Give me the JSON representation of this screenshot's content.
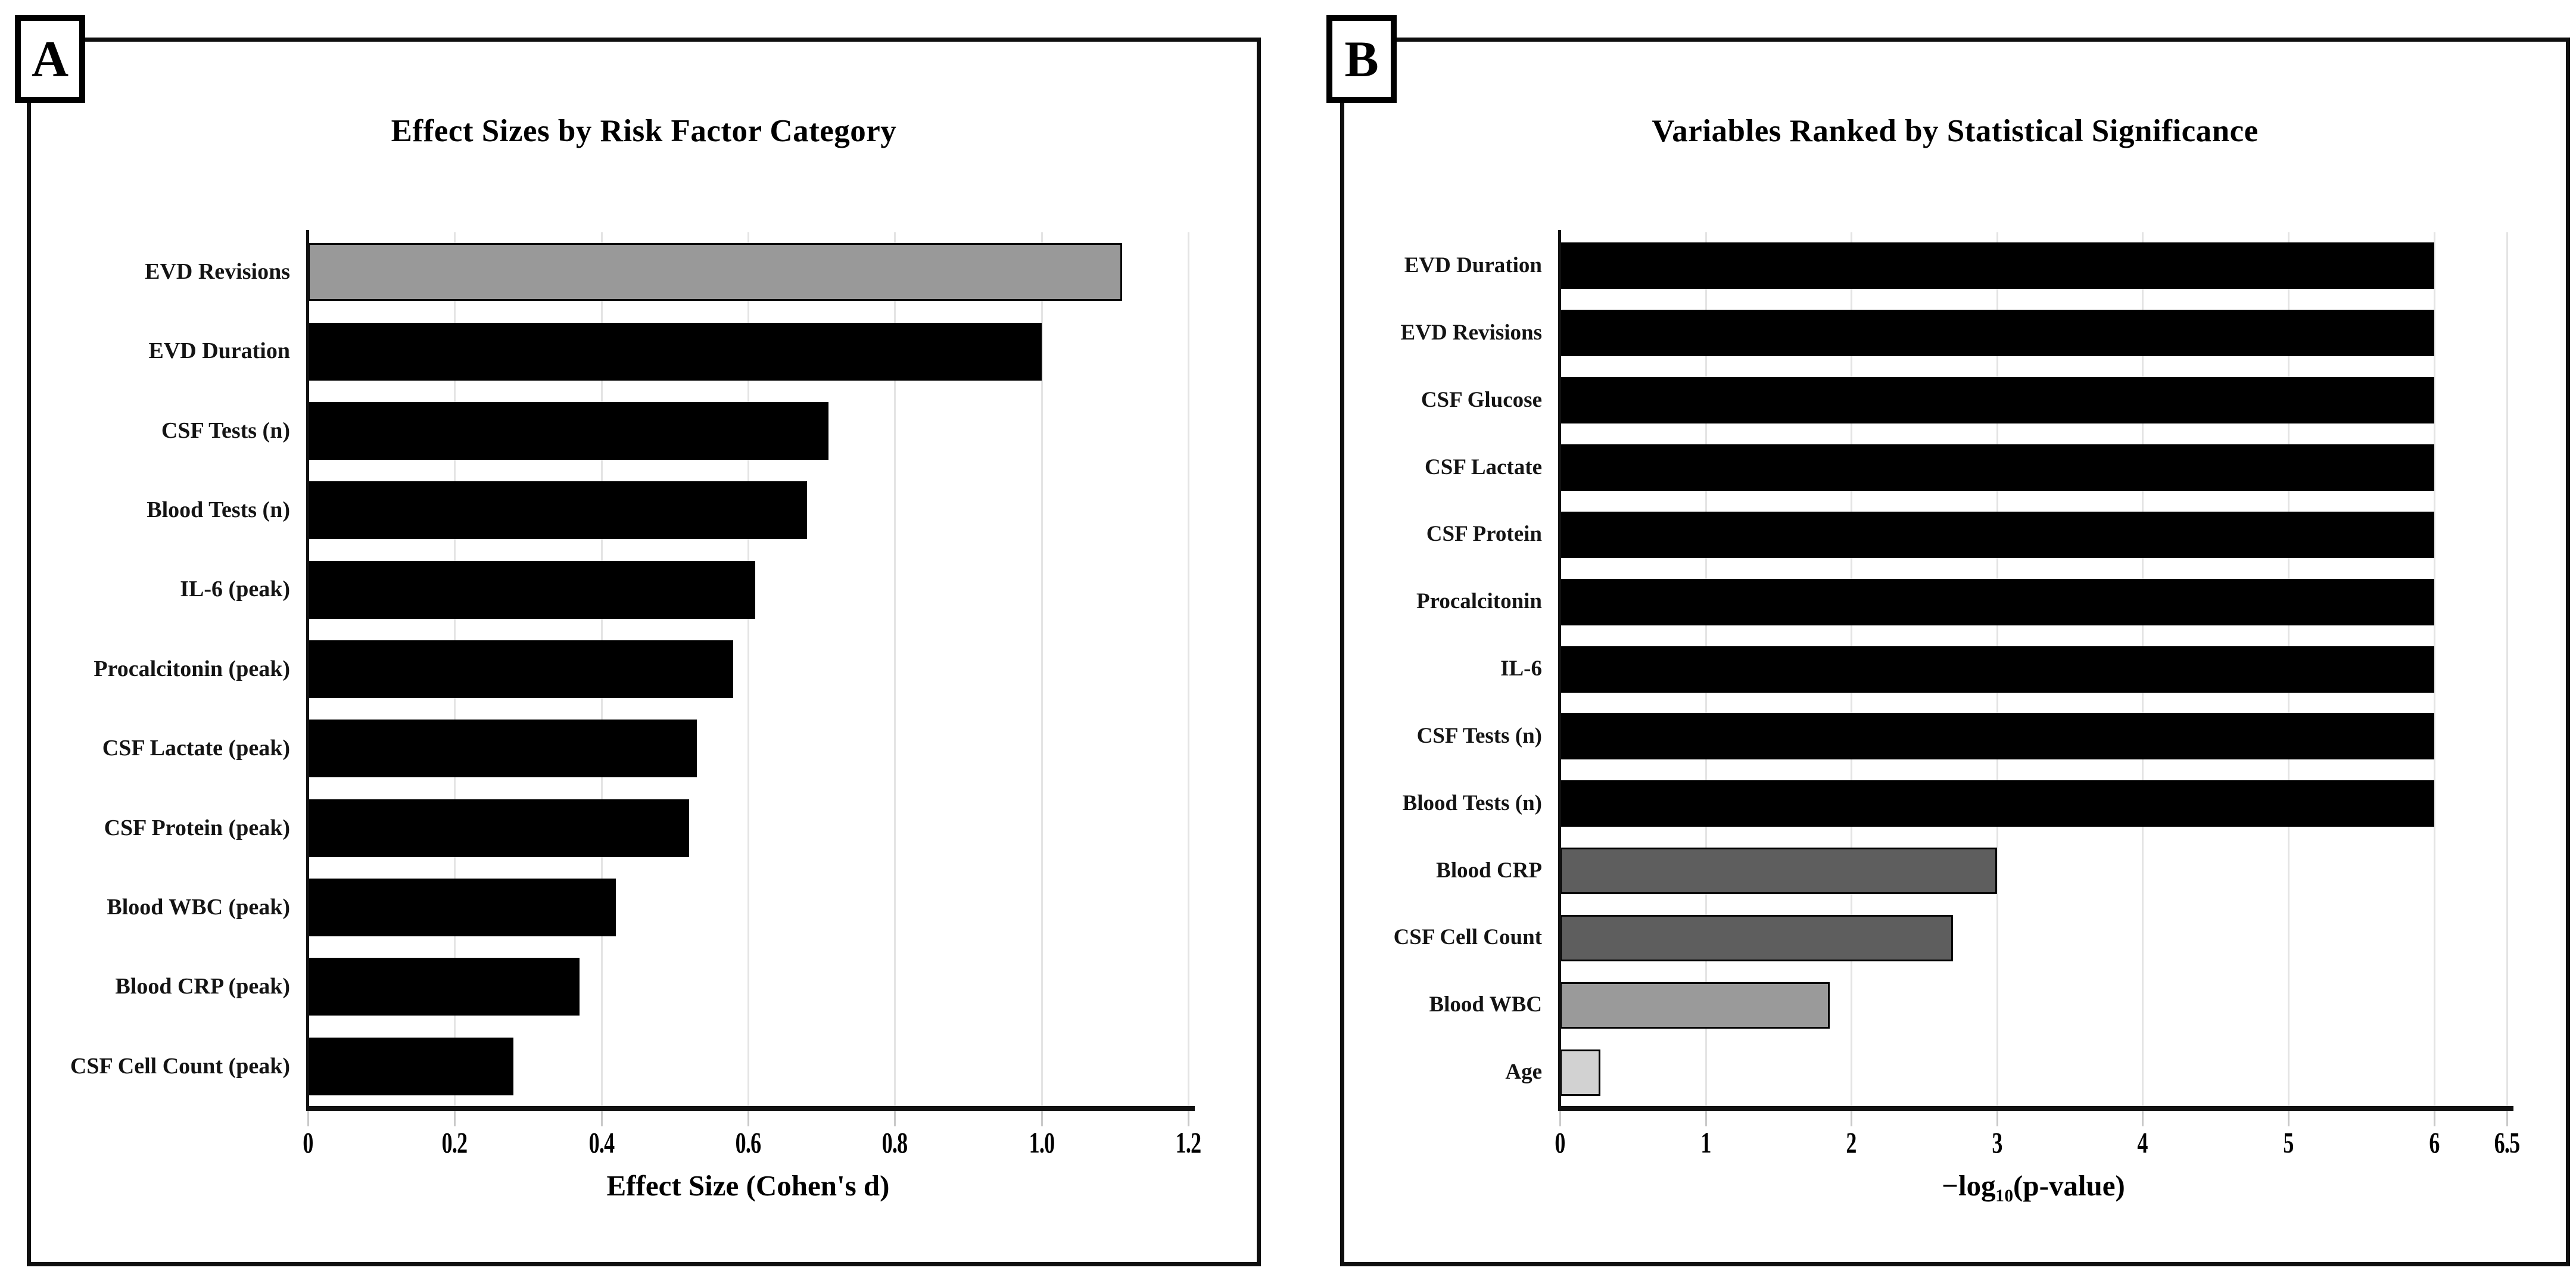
{
  "chart_data": [
    {
      "type": "bar",
      "orientation": "horizontal",
      "panel": "A",
      "title": "Effect Sizes by Risk Factor Category",
      "xlabel": "Effect Size (Cohen's d)",
      "categories": [
        "EVD Revisions",
        "EVD Duration",
        "CSF Tests (n)",
        "Blood Tests (n)",
        "IL-6 (peak)",
        "Procalcitonin (peak)",
        "CSF Lactate (peak)",
        "CSF Protein (peak)",
        "Blood WBC (peak)",
        "Blood CRP (peak)",
        "CSF Cell Count (peak)"
      ],
      "values": [
        1.11,
        1.0,
        0.71,
        0.68,
        0.61,
        0.58,
        0.53,
        0.52,
        0.42,
        0.37,
        0.28
      ],
      "bar_colors": [
        "#999999",
        "#000000",
        "#000000",
        "#000000",
        "#000000",
        "#000000",
        "#000000",
        "#000000",
        "#000000",
        "#000000",
        "#000000"
      ],
      "xlim": [
        0,
        1.2
      ],
      "xticks": [
        0,
        0.2,
        0.4,
        0.6,
        0.8,
        1.0,
        1.2
      ],
      "xtick_labels": [
        "0",
        "0.2",
        "0.4",
        "0.6",
        "0.8",
        "1.0",
        "1.2"
      ],
      "grid": true,
      "legend": "none"
    },
    {
      "type": "bar",
      "orientation": "horizontal",
      "panel": "B",
      "title": "Variables Ranked by Statistical Significance",
      "xlabel": "−log₁₀(p-value)",
      "categories": [
        "EVD Duration",
        "EVD Revisions",
        "CSF Glucose",
        "CSF Lactate",
        "CSF Protein",
        "Procalcitonin",
        "IL-6",
        "CSF Tests (n)",
        "Blood Tests (n)",
        "Blood CRP",
        "CSF Cell Count",
        "Blood WBC",
        "Age"
      ],
      "values": [
        6.0,
        6.0,
        6.0,
        6.0,
        6.0,
        6.0,
        6.0,
        6.0,
        6.0,
        3.0,
        2.7,
        1.85,
        0.28
      ],
      "bar_colors": [
        "#000000",
        "#000000",
        "#000000",
        "#000000",
        "#000000",
        "#000000",
        "#000000",
        "#000000",
        "#000000",
        "#5e5e5e",
        "#5e5e5e",
        "#9a9a9a",
        "#d2d2d2"
      ],
      "xlim": [
        0,
        6.5
      ],
      "xticks": [
        0,
        1,
        2,
        3,
        4,
        5,
        6,
        6.5
      ],
      "xtick_labels": [
        "0",
        "1",
        "2",
        "3",
        "4",
        "5",
        "6",
        "6.5"
      ],
      "grid": true,
      "legend": "none"
    }
  ]
}
